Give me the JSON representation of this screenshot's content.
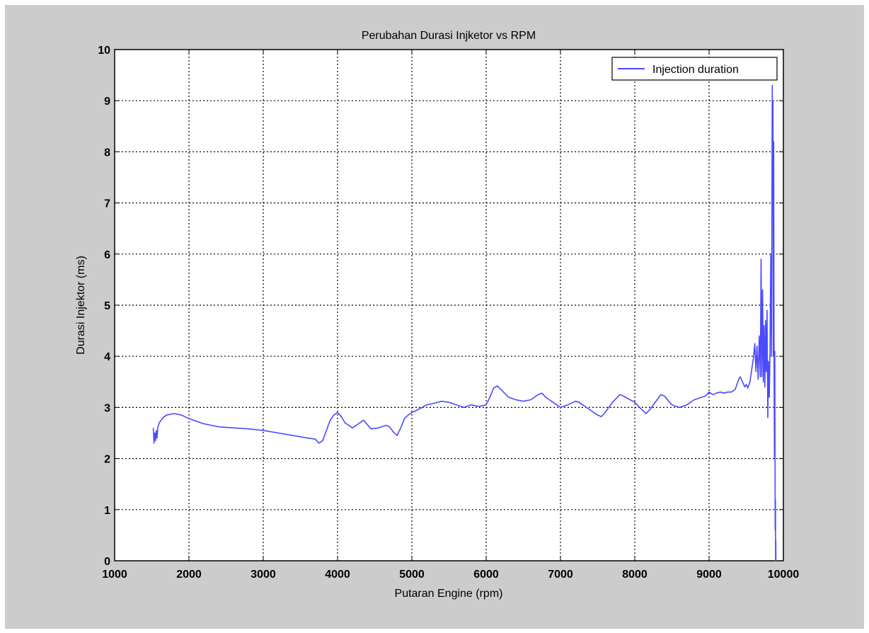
{
  "chart_data": {
    "type": "line",
    "title": "Perubahan Durasi Injketor vs RPM",
    "xlabel": "Putaran Engine (rpm)",
    "ylabel": "Durasi Injektor (ms)",
    "xlim": [
      1000,
      10000
    ],
    "ylim": [
      0,
      10
    ],
    "xticks": [
      1000,
      2000,
      3000,
      4000,
      5000,
      6000,
      7000,
      8000,
      9000,
      10000
    ],
    "yticks": [
      0,
      1,
      2,
      3,
      4,
      5,
      6,
      7,
      8,
      9,
      10
    ],
    "grid": true,
    "legend_position": "top-right",
    "series": [
      {
        "name": "Injection duration",
        "color": "#4a4aff",
        "x": [
          1520,
          1530,
          1540,
          1550,
          1560,
          1570,
          1580,
          1600,
          1650,
          1700,
          1800,
          1900,
          2000,
          2200,
          2400,
          2600,
          2800,
          3000,
          3200,
          3400,
          3600,
          3700,
          3750,
          3800,
          3850,
          3900,
          3950,
          4000,
          4050,
          4100,
          4200,
          4250,
          4350,
          4450,
          4550,
          4650,
          4700,
          4750,
          4800,
          4850,
          4900,
          4950,
          5000,
          5100,
          5200,
          5300,
          5400,
          5500,
          5600,
          5700,
          5800,
          5900,
          6000,
          6050,
          6100,
          6150,
          6200,
          6300,
          6400,
          6500,
          6600,
          6700,
          6750,
          6800,
          6900,
          7000,
          7100,
          7200,
          7250,
          7300,
          7400,
          7500,
          7550,
          7600,
          7700,
          7800,
          7850,
          7900,
          8000,
          8100,
          8150,
          8200,
          8300,
          8350,
          8400,
          8500,
          8600,
          8700,
          8800,
          8900,
          8950,
          9000,
          9050,
          9100,
          9150,
          9200,
          9250,
          9300,
          9350,
          9400,
          9420,
          9450,
          9480,
          9500,
          9520,
          9550,
          9580,
          9600,
          9615,
          9630,
          9645,
          9660,
          9675,
          9690,
          9700,
          9710,
          9720,
          9730,
          9740,
          9750,
          9760,
          9770,
          9780,
          9790,
          9800,
          9810,
          9820,
          9830,
          9840,
          9850,
          9855,
          9860,
          9865,
          9870,
          9875,
          9880,
          9885,
          9890,
          9893,
          9895,
          9898,
          9900
        ],
        "y": [
          2.6,
          2.3,
          2.5,
          2.35,
          2.55,
          2.4,
          2.6,
          2.7,
          2.8,
          2.85,
          2.88,
          2.85,
          2.78,
          2.68,
          2.62,
          2.6,
          2.58,
          2.55,
          2.5,
          2.45,
          2.4,
          2.38,
          2.3,
          2.35,
          2.55,
          2.75,
          2.85,
          2.9,
          2.82,
          2.7,
          2.6,
          2.65,
          2.75,
          2.58,
          2.6,
          2.65,
          2.62,
          2.52,
          2.45,
          2.6,
          2.78,
          2.85,
          2.9,
          2.97,
          3.05,
          3.08,
          3.12,
          3.1,
          3.05,
          3.0,
          3.05,
          3.02,
          3.05,
          3.2,
          3.38,
          3.42,
          3.35,
          3.2,
          3.15,
          3.12,
          3.15,
          3.25,
          3.28,
          3.2,
          3.1,
          3.0,
          3.05,
          3.12,
          3.1,
          3.05,
          2.95,
          2.85,
          2.82,
          2.9,
          3.1,
          3.25,
          3.22,
          3.18,
          3.1,
          2.95,
          2.88,
          2.95,
          3.15,
          3.25,
          3.22,
          3.05,
          3.0,
          3.05,
          3.15,
          3.2,
          3.22,
          3.3,
          3.25,
          3.28,
          3.3,
          3.28,
          3.3,
          3.3,
          3.35,
          3.55,
          3.6,
          3.5,
          3.4,
          3.45,
          3.38,
          3.5,
          3.8,
          4.0,
          4.25,
          3.7,
          4.2,
          3.55,
          4.4,
          3.6,
          5.9,
          3.6,
          5.3,
          3.5,
          4.6,
          3.4,
          4.7,
          3.7,
          4.9,
          2.8,
          3.9,
          3.2,
          4.1,
          6.0,
          4.0,
          9.3,
          7.2,
          9.0,
          4.0,
          8.2,
          3.6,
          2.0,
          4.1,
          0.6,
          1.2,
          0.0,
          0.4,
          0.0
        ]
      }
    ]
  }
}
